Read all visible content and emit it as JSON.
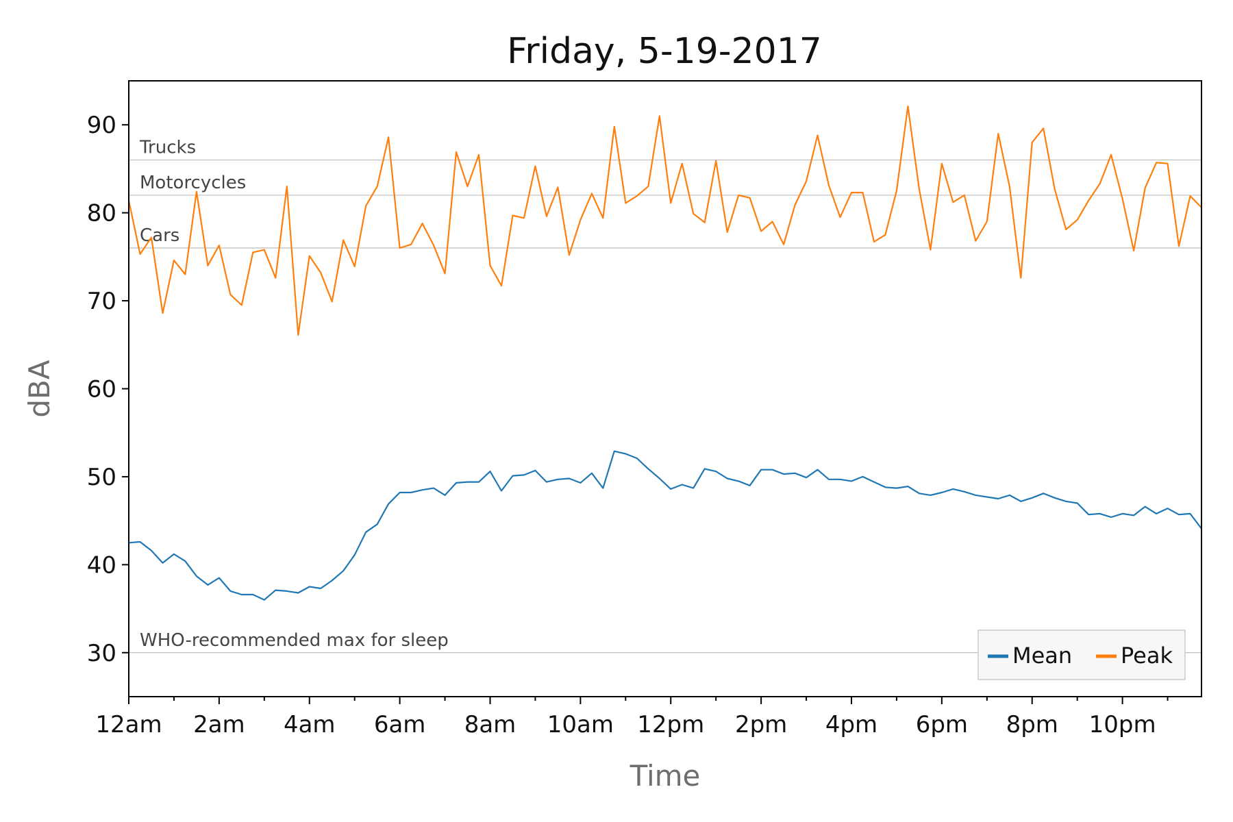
{
  "chart_data": {
    "type": "line",
    "title": "Friday, 5-19-2017",
    "xlabel": "Time",
    "ylabel": "dBA",
    "ylim": [
      25,
      95
    ],
    "xlim": [
      0,
      23.75
    ],
    "x_step_hours": 0.25,
    "y_ticks": [
      30,
      40,
      50,
      60,
      70,
      80,
      90
    ],
    "x_ticks": [
      {
        "hour": 0,
        "label": "12am"
      },
      {
        "hour": 2,
        "label": "2am"
      },
      {
        "hour": 4,
        "label": "4am"
      },
      {
        "hour": 6,
        "label": "6am"
      },
      {
        "hour": 8,
        "label": "8am"
      },
      {
        "hour": 10,
        "label": "10am"
      },
      {
        "hour": 12,
        "label": "12pm"
      },
      {
        "hour": 14,
        "label": "2pm"
      },
      {
        "hour": 16,
        "label": "4pm"
      },
      {
        "hour": 18,
        "label": "6pm"
      },
      {
        "hour": 20,
        "label": "8pm"
      },
      {
        "hour": 22,
        "label": "10pm"
      }
    ],
    "reference_lines": [
      {
        "label": "Trucks",
        "value": 86
      },
      {
        "label": "Motorcycles",
        "value": 82
      },
      {
        "label": "Cars",
        "value": 76
      },
      {
        "label": "WHO-recommended max for sleep",
        "value": 30
      }
    ],
    "legend_position": "lower-right",
    "series": [
      {
        "name": "Mean",
        "color": "#1f77b4",
        "values": [
          42.5,
          42.6,
          41.6,
          40.2,
          41.2,
          40.4,
          38.7,
          37.7,
          38.5,
          37.0,
          36.6,
          36.6,
          36.0,
          37.1,
          37.0,
          36.8,
          37.5,
          37.3,
          38.2,
          39.3,
          41.1,
          43.7,
          44.6,
          46.9,
          48.2,
          48.2,
          48.5,
          48.7,
          47.9,
          49.3,
          49.4,
          49.4,
          50.6,
          48.4,
          50.1,
          50.2,
          50.7,
          49.4,
          49.7,
          49.8,
          49.3,
          50.4,
          48.7,
          52.9,
          52.6,
          52.1,
          50.9,
          49.8,
          48.6,
          49.1,
          48.7,
          50.9,
          50.6,
          49.8,
          49.5,
          49.0,
          50.8,
          50.8,
          50.3,
          50.4,
          49.9,
          50.8,
          49.7,
          49.7,
          49.5,
          50.0,
          49.4,
          48.8,
          48.7,
          48.9,
          48.1,
          47.9,
          48.2,
          48.6,
          48.3,
          47.9,
          47.7,
          47.5,
          47.9,
          47.2,
          47.6,
          48.1,
          47.6,
          47.2,
          47.0,
          45.7,
          45.8,
          45.4,
          45.8,
          45.6,
          46.6,
          45.8,
          46.4,
          45.7,
          45.8,
          44.1
        ]
      },
      {
        "name": "Peak",
        "color": "#ff7f0e",
        "values": [
          81.4,
          75.3,
          77.2,
          68.6,
          74.6,
          73.0,
          82.4,
          74.0,
          76.3,
          70.7,
          69.5,
          75.5,
          75.8,
          72.6,
          83.0,
          66.1,
          75.1,
          73.2,
          69.9,
          76.9,
          73.9,
          80.8,
          83.0,
          88.6,
          76.0,
          76.4,
          78.8,
          76.3,
          73.1,
          86.9,
          83.0,
          86.6,
          74.0,
          71.7,
          79.7,
          79.4,
          85.3,
          79.6,
          82.9,
          75.2,
          79.2,
          82.2,
          79.4,
          89.8,
          81.1,
          81.9,
          83.0,
          91.0,
          81.1,
          85.6,
          79.9,
          78.9,
          85.9,
          77.8,
          82.0,
          81.7,
          77.9,
          79.0,
          76.4,
          80.9,
          83.6,
          88.8,
          83.1,
          79.5,
          82.3,
          82.3,
          76.7,
          77.5,
          82.5,
          92.1,
          82.7,
          75.8,
          85.6,
          81.2,
          82.0,
          76.8,
          79.0,
          89.0,
          83.0,
          72.6,
          88.0,
          89.6,
          82.7,
          78.1,
          79.2,
          81.4,
          83.3,
          86.6,
          81.6,
          75.7,
          82.8,
          85.7,
          85.6,
          76.2,
          81.9,
          80.6
        ]
      }
    ]
  }
}
